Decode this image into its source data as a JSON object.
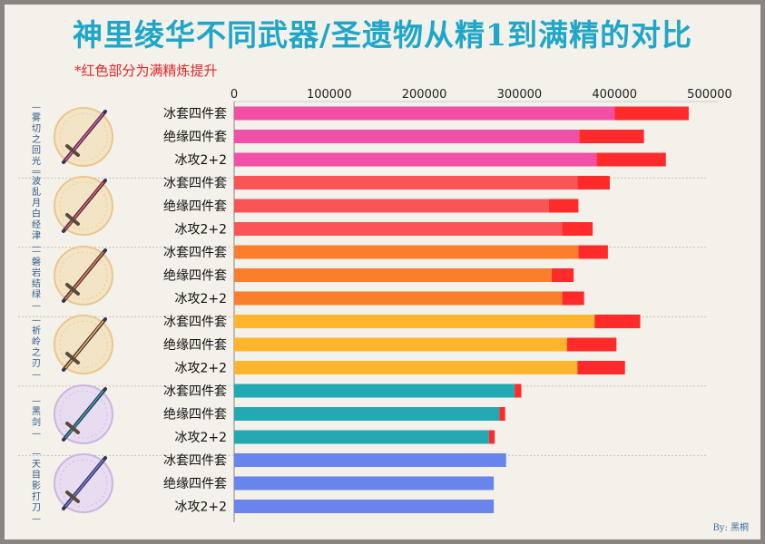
{
  "title": "神里绫华不同武器/圣遗物从精1到满精的对比",
  "subtitle": "*红色部分为满精炼提升",
  "author": "By: 黑桐",
  "colors": {
    "refine": "#ff2a2a",
    "weapons": [
      "#f24fa6",
      "#fb5456",
      "#fb7e2d",
      "#ffb52e",
      "#23a9b2",
      "#6a84ee"
    ]
  },
  "weapons": [
    {
      "label": "雾切之回光",
      "icon": "sword-icon",
      "circle": "gold"
    },
    {
      "label": "波乱月白经津",
      "icon": "sword-icon",
      "circle": "gold"
    },
    {
      "label": "磐岩结绿",
      "icon": "sword-icon",
      "circle": "gold"
    },
    {
      "label": "祈岭之刃",
      "icon": "sword-icon",
      "circle": "gold"
    },
    {
      "label": "黑剑",
      "icon": "sword-icon",
      "circle": "purple"
    },
    {
      "label": "天目影打刀",
      "icon": "sword-icon",
      "circle": "purple"
    }
  ],
  "chart_data": {
    "type": "bar",
    "orientation": "horizontal",
    "stacked": true,
    "xlim": [
      0,
      500000
    ],
    "ticks": [
      0,
      100000,
      200000,
      300000,
      400000,
      500000
    ],
    "tick_labels": [
      "0",
      "100000",
      "200000",
      "300000",
      "400000",
      "500000"
    ],
    "categories": [
      "冰套四件套",
      "绝缘四件套",
      "冰攻2+2",
      "冰套四件套",
      "绝缘四件套",
      "冰攻2+2",
      "冰套四件套",
      "绝缘四件套",
      "冰攻2+2",
      "冰套四件套",
      "绝缘四件套",
      "冰攻2+2",
      "冰套四件套",
      "绝缘四件套",
      "冰攻2+2",
      "冰套四件套",
      "绝缘四件套",
      "冰攻2+2"
    ],
    "groups": [
      0,
      0,
      0,
      1,
      1,
      1,
      2,
      2,
      2,
      3,
      3,
      3,
      4,
      4,
      4,
      5,
      5,
      5
    ],
    "series": [
      {
        "values": [
          400000,
          363000,
          381000,
          361000,
          331000,
          345000,
          362000,
          334000,
          345000,
          379000,
          350000,
          361000,
          295000,
          279000,
          268000,
          286000,
          273000,
          273000
        ]
      },
      {
        "values": [
          78000,
          68000,
          73000,
          34000,
          31000,
          32000,
          31000,
          23000,
          23000,
          48000,
          52000,
          50000,
          7000,
          6000,
          6000,
          0,
          0,
          0
        ]
      }
    ]
  }
}
